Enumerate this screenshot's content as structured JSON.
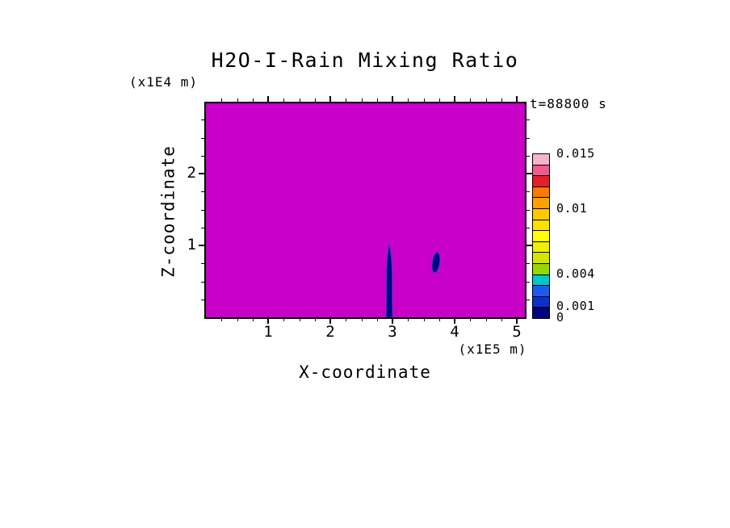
{
  "page": {
    "background": "#FFFFFF"
  },
  "chart_data": {
    "type": "heatmap",
    "title": "H2O-I-Rain Mixing Ratio",
    "time_annotation": "t=88800 s",
    "xlabel": "X-coordinate",
    "x_unit": "(x1E5 m)",
    "ylabel": "Z-coordinate",
    "y_unit": "(x1E4 m)",
    "xlim": [
      0,
      5.13
    ],
    "ylim": [
      0,
      2.98
    ],
    "x_major_ticks": [
      1,
      2,
      3,
      4,
      5
    ],
    "x_minor_tick_step": 0.25,
    "y_major_ticks": [
      1,
      2
    ],
    "y_minor_tick_step": 0.25,
    "grid": false,
    "field_color": "#C800C8",
    "field_note": "near-uniform magenta background field with two small dark-blue rain features",
    "features": [
      {
        "label": "rain-shaft",
        "shape": "shaft",
        "x": 2.95,
        "z_range": [
          0,
          1.01
        ],
        "approx_width_x": 0.1,
        "color": "#000080"
      },
      {
        "label": "rain-patch",
        "shape": "blob",
        "x": 3.7,
        "z_range": [
          0.62,
          0.9
        ],
        "approx_width_x": 0.12,
        "color": "#000080"
      }
    ],
    "colorbar": {
      "min": 0,
      "max": 0.015,
      "labeled_values": [
        "0.015",
        "0.01",
        "0.004",
        "0.001",
        "0"
      ],
      "segments_bottom_to_top": [
        {
          "from": 0.0,
          "to": 0.001,
          "color": "#000082"
        },
        {
          "from": 0.001,
          "to": 0.002,
          "color": "#0A32C8"
        },
        {
          "from": 0.002,
          "to": 0.003,
          "color": "#1E5AF0"
        },
        {
          "from": 0.003,
          "to": 0.004,
          "color": "#00C8C8"
        },
        {
          "from": 0.004,
          "to": 0.005,
          "color": "#96D700"
        },
        {
          "from": 0.005,
          "to": 0.006,
          "color": "#D2E600"
        },
        {
          "from": 0.006,
          "to": 0.007,
          "color": "#F0F000"
        },
        {
          "from": 0.007,
          "to": 0.008,
          "color": "#FFFF00"
        },
        {
          "from": 0.008,
          "to": 0.009,
          "color": "#FFE100"
        },
        {
          "from": 0.009,
          "to": 0.01,
          "color": "#FFC800"
        },
        {
          "from": 0.01,
          "to": 0.011,
          "color": "#FFA000"
        },
        {
          "from": 0.011,
          "to": 0.012,
          "color": "#FF7800"
        },
        {
          "from": 0.012,
          "to": 0.013,
          "color": "#E61E28"
        },
        {
          "from": 0.013,
          "to": 0.014,
          "color": "#F05A8C"
        },
        {
          "from": 0.014,
          "to": 0.015,
          "color": "#F5B4C8"
        }
      ]
    }
  }
}
